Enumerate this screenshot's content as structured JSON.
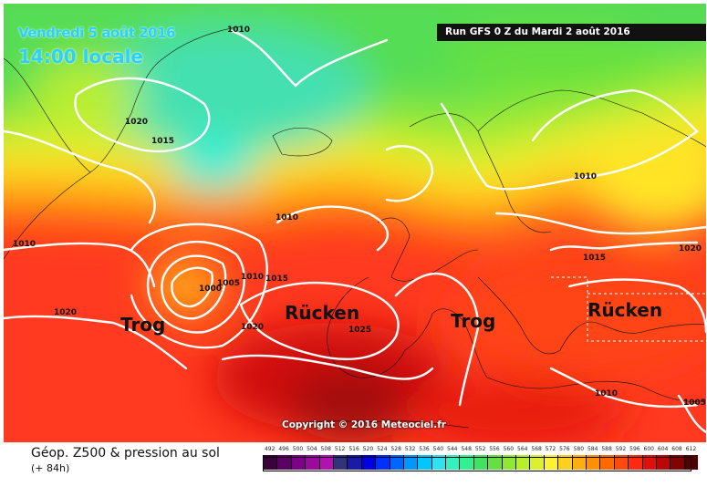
{
  "header": {
    "valid_date": "Vendredi 5 août 2016",
    "valid_time": "14:00 locale",
    "run": "Run GFS 0 Z du Mardi 2 août 2016"
  },
  "copyright": "Copyright © 2016 Meteociel.fr",
  "annotations": {
    "trog_west": "Trog",
    "ruecken_west": "Rücken",
    "trog_central": "Trog",
    "ruecken_east": "Rücken"
  },
  "isobars": {
    "i1010_top": "1010",
    "i1020_greenland": "1020",
    "i1015_greenland": "1015",
    "i1010_mid": "1010",
    "i1010_west": "1010",
    "i1020_west": "1020",
    "i1000_low": "1000",
    "i1005_low": "1005",
    "i1010_low": "1010",
    "i1015_low": "1015",
    "i1020_low": "1020",
    "i1025_azores": "1025",
    "i1010_scand": "1010",
    "i1015_east": "1015",
    "i1020_east": "1020",
    "i1010_se": "1010",
    "i1005_se": "1005"
  },
  "footer": {
    "title": "Géop. Z500 & pression au sol",
    "subtitle": "(+ 84h)"
  },
  "scale": {
    "labels": [
      "492",
      "496",
      "500",
      "504",
      "508",
      "512",
      "516",
      "520",
      "524",
      "528",
      "532",
      "536",
      "540",
      "544",
      "548",
      "552",
      "556",
      "560",
      "564",
      "568",
      "572",
      "576",
      "580",
      "584",
      "588",
      "592",
      "596",
      "600",
      "604",
      "608",
      "612"
    ],
    "colors": [
      "#3a0039",
      "#5a0060",
      "#7c0085",
      "#9a0a9c",
      "#b012b2",
      "#33337a",
      "#1a1aa8",
      "#0000e0",
      "#0030ff",
      "#0064ff",
      "#0098ff",
      "#00c8ff",
      "#33e0f0",
      "#33f0c0",
      "#33f090",
      "#44e060",
      "#66e040",
      "#90e830",
      "#b8ee30",
      "#dcf030",
      "#fff030",
      "#ffd020",
      "#ffb010",
      "#ff9000",
      "#ff6a00",
      "#ff4a10",
      "#ff2a10",
      "#e0100c",
      "#b80808",
      "#800404",
      "#500000"
    ]
  }
}
